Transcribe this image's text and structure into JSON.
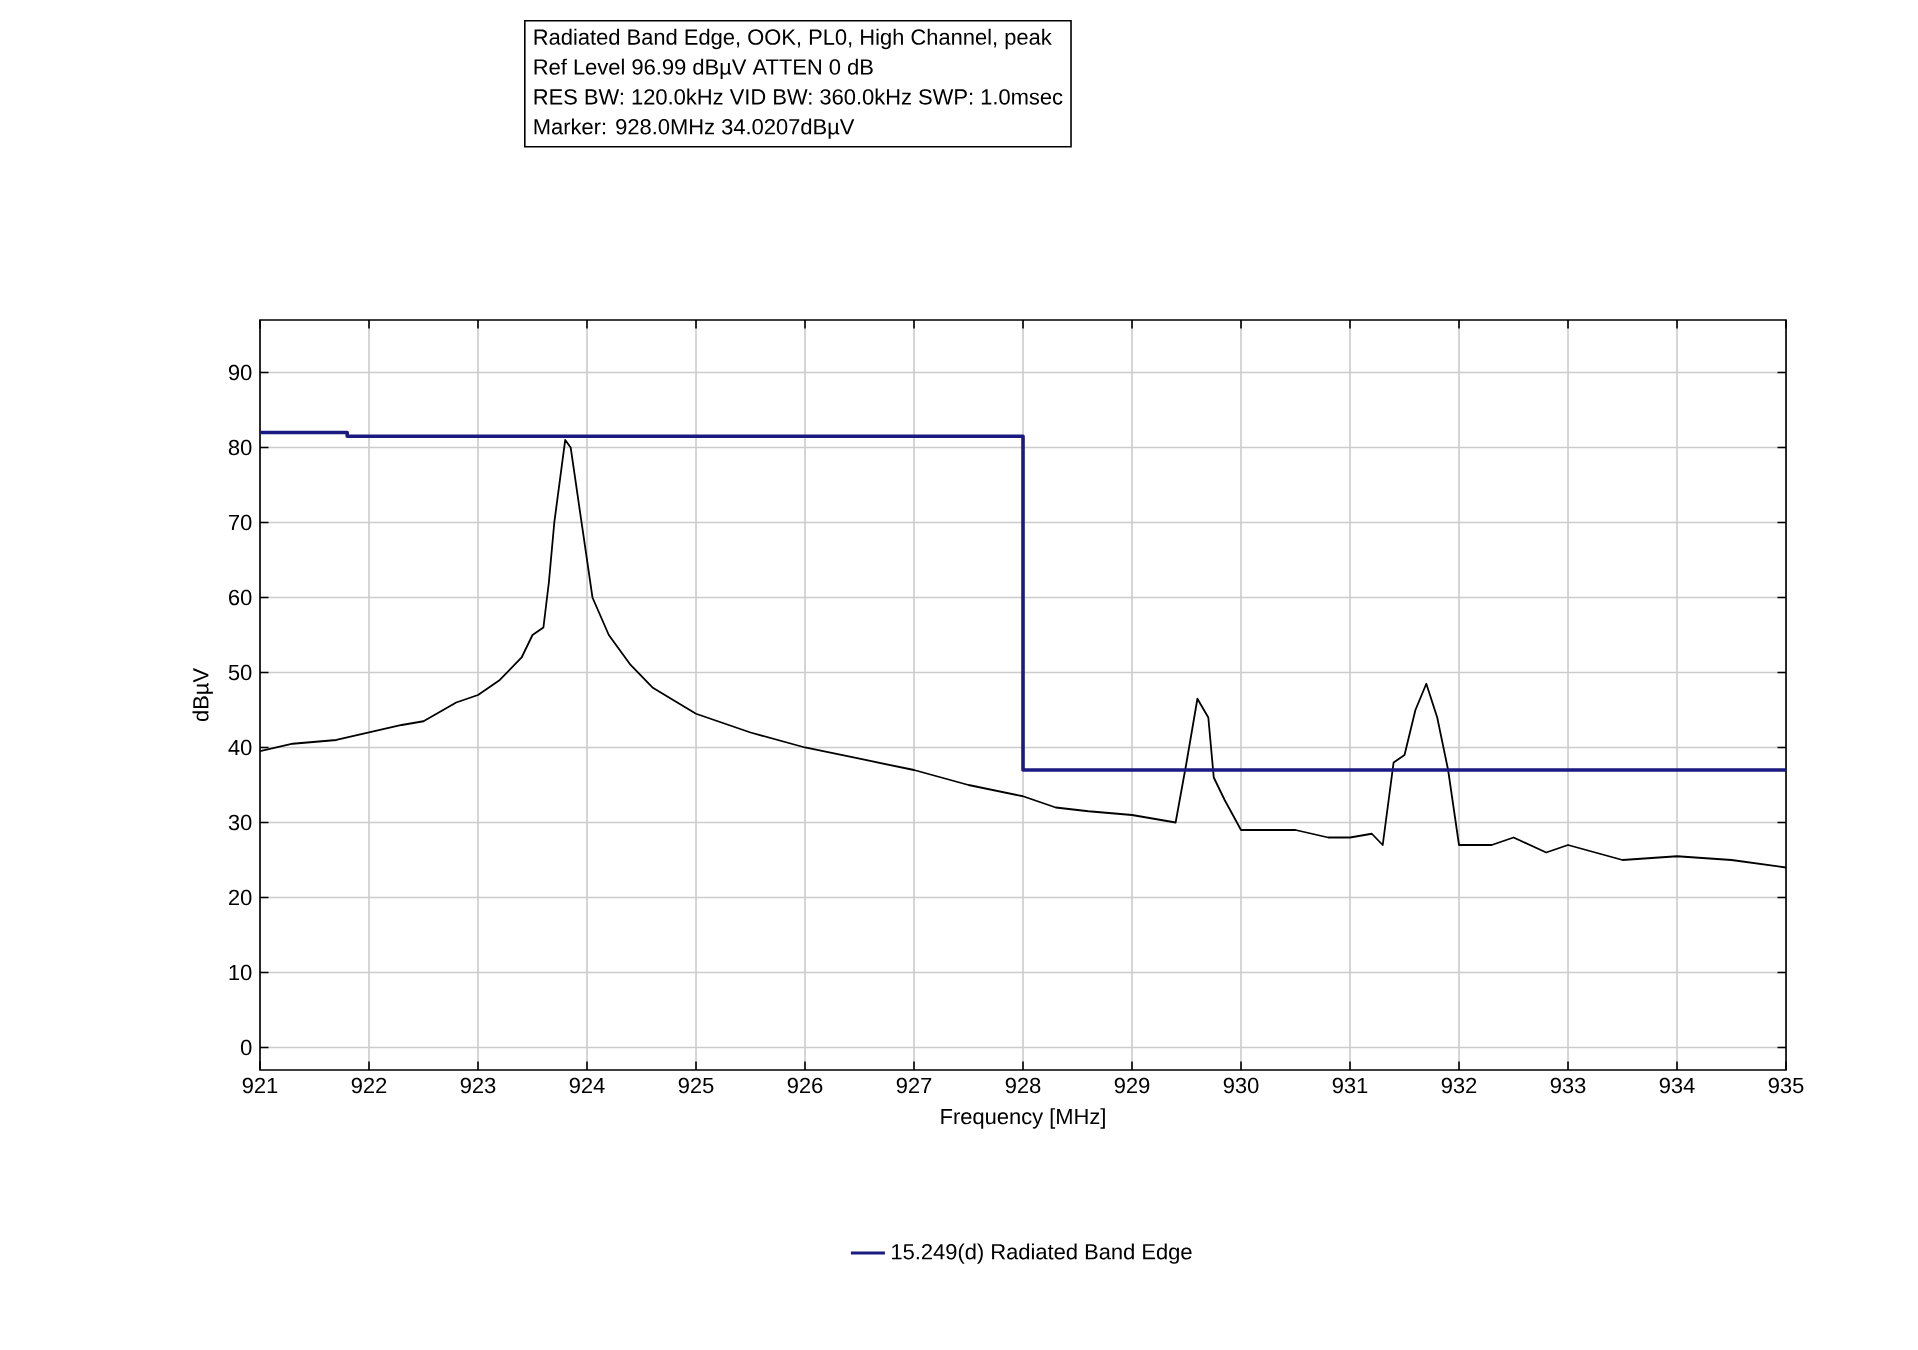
{
  "chart_data": {
    "type": "line",
    "annotations": [
      "Radiated Band Edge, OOK, PL0, High Channel, peak",
      "Ref Level 96.99 dBµV    ATTEN 0 dB",
      "RES BW: 120.0kHz  VID BW: 360.0kHz  SWP: 1.0msec",
      "Marker: 928.0MHz  34.0207dBµV"
    ],
    "xlabel": "Frequency [MHz]",
    "ylabel": "dBµV",
    "xlim": [
      921,
      935
    ],
    "xticks": [
      921,
      922,
      923,
      924,
      925,
      926,
      927,
      928,
      929,
      930,
      931,
      932,
      933,
      934,
      935
    ],
    "ylim": [
      -3,
      97
    ],
    "yticks": [
      0,
      10,
      20,
      30,
      40,
      50,
      60,
      70,
      80,
      90
    ],
    "grid": true,
    "legend": "bottom",
    "series": [
      {
        "color": "#000000",
        "x": [
          921,
          921.3,
          921.7,
          922,
          922.3,
          922.5,
          922.8,
          923,
          923.2,
          923.4,
          923.5,
          923.6,
          923.65,
          923.7,
          923.8,
          923.85,
          923.9,
          923.95,
          924.05,
          924.2,
          924.4,
          924.6,
          925,
          925.5,
          926,
          926.5,
          927,
          927.5,
          928,
          928.3,
          928.6,
          929,
          929.4,
          929.5,
          929.6,
          929.7,
          929.75,
          929.85,
          930,
          930.5,
          930.8,
          931,
          931.2,
          931.3,
          931.4,
          931.5,
          931.6,
          931.7,
          931.8,
          931.9,
          932,
          932.3,
          932.5,
          932.8,
          933,
          933.5,
          934,
          934.5,
          935
        ],
        "values": [
          39.5,
          40.5,
          41,
          42,
          43,
          43.5,
          46,
          47,
          49,
          52,
          55,
          56,
          62,
          70,
          81,
          80,
          75,
          70,
          60,
          55,
          51,
          48,
          44.5,
          42,
          40,
          38.5,
          37,
          35,
          33.5,
          32,
          31.5,
          31,
          30,
          38,
          46.5,
          44,
          36,
          33,
          29,
          29,
          28,
          28,
          28.5,
          27,
          38,
          39,
          45,
          48.5,
          44,
          37,
          27,
          27,
          28,
          26,
          27,
          25,
          25.5,
          25,
          24
        ]
      },
      {
        "type": "step",
        "name": "15.249(d) Radiated Band Edge",
        "color": "#1a1a80",
        "x": [
          921,
          921.8,
          928,
          935
        ],
        "values": [
          82,
          81.5,
          37,
          37
        ]
      }
    ]
  }
}
